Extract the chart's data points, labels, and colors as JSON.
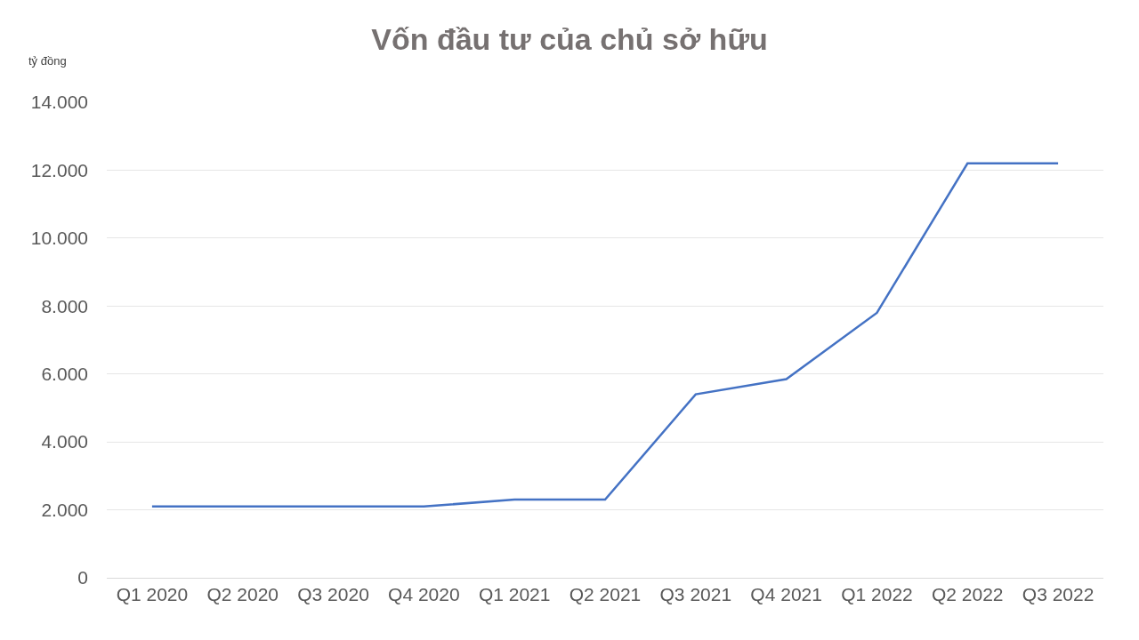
{
  "chart_data": {
    "type": "line",
    "title": "Vốn đầu tư của chủ sở hữu",
    "ylabel": "tỷ đồng",
    "categories": [
      "Q1 2020",
      "Q2 2020",
      "Q3 2020",
      "Q4 2020",
      "Q1 2021",
      "Q2 2021",
      "Q3 2021",
      "Q4 2021",
      "Q1 2022",
      "Q2 2022",
      "Q3 2022"
    ],
    "series": [
      {
        "color": "#4472c4",
        "values": [
          2100,
          2100,
          2100,
          2100,
          2300,
          2300,
          5400,
          5850,
          7800,
          12200,
          12200
        ]
      }
    ],
    "ylim": [
      0,
      14000
    ],
    "yticks": [
      0,
      {
        "value": 2000,
        "label": "2.000"
      },
      {
        "value": 4000,
        "label": "4.000"
      },
      {
        "value": 6000,
        "label": "6.000"
      },
      {
        "value": 8000,
        "label": "8.000"
      },
      {
        "value": 10000,
        "label": "10.000"
      },
      {
        "value": 12000,
        "label": "12.000"
      },
      {
        "value": 14000,
        "label": "14.000"
      }
    ],
    "grid": "y",
    "marker": "none",
    "line_style": "solid"
  }
}
